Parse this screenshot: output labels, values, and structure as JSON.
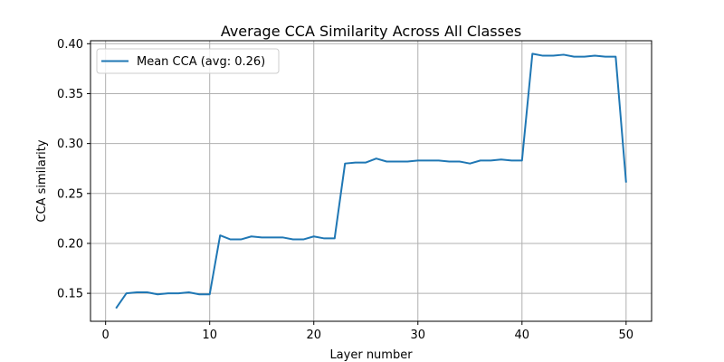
{
  "chart_data": {
    "type": "line",
    "title": "Average CCA Similarity Across All Classes",
    "xlabel": "Layer number",
    "ylabel": "CCA similarity",
    "xlim": [
      -1.45,
      52.45
    ],
    "ylim": [
      0.122,
      0.403
    ],
    "x_ticks": [
      0,
      10,
      20,
      30,
      40,
      50
    ],
    "x_tick_labels": [
      "0",
      "10",
      "20",
      "30",
      "40",
      "50"
    ],
    "y_ticks": [
      0.15,
      0.2,
      0.25,
      0.3,
      0.35,
      0.4
    ],
    "y_tick_labels": [
      "0.15",
      "0.20",
      "0.25",
      "0.30",
      "0.35",
      "0.40"
    ],
    "grid": true,
    "legend_position": "top-left",
    "series": [
      {
        "name": "Mean CCA (avg: 0.26)",
        "color": "#1f77b4",
        "x": [
          1,
          2,
          3,
          4,
          5,
          6,
          7,
          8,
          9,
          10,
          11,
          12,
          13,
          14,
          15,
          16,
          17,
          18,
          19,
          20,
          21,
          22,
          23,
          24,
          25,
          26,
          27,
          28,
          29,
          30,
          31,
          32,
          33,
          34,
          35,
          36,
          37,
          38,
          39,
          40,
          41,
          42,
          43,
          44,
          45,
          46,
          47,
          48,
          49,
          50
        ],
        "values": [
          0.135,
          0.15,
          0.151,
          0.151,
          0.149,
          0.15,
          0.15,
          0.151,
          0.149,
          0.149,
          0.208,
          0.204,
          0.204,
          0.207,
          0.206,
          0.206,
          0.206,
          0.204,
          0.204,
          0.207,
          0.205,
          0.205,
          0.28,
          0.281,
          0.281,
          0.285,
          0.282,
          0.282,
          0.282,
          0.283,
          0.283,
          0.283,
          0.282,
          0.282,
          0.28,
          0.283,
          0.283,
          0.284,
          0.283,
          0.283,
          0.39,
          0.388,
          0.388,
          0.389,
          0.387,
          0.387,
          0.388,
          0.387,
          0.387,
          0.261
        ]
      }
    ]
  }
}
